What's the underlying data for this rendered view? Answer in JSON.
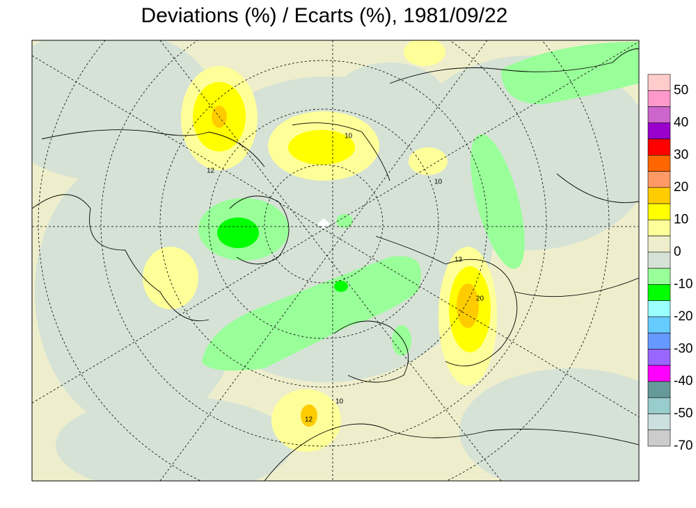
{
  "header": {
    "title": "Deviations (%) / Ecarts (%), 1981/09/22"
  },
  "colorbar": {
    "colors": [
      "#ffcccc",
      "#ff99cc",
      "#cc66cc",
      "#9900cc",
      "#ff0000",
      "#ff6600",
      "#ff9966",
      "#ffcc00",
      "#ffff00",
      "#ffff99",
      "#eeeecc",
      "#d6e2d6",
      "#99ff99",
      "#00ff00",
      "#99ffff",
      "#66ccff",
      "#6699ff",
      "#9966ff",
      "#ff00ff",
      "#669999",
      "#99cccc",
      "#cce0e0",
      "#cccccc"
    ],
    "labels": [
      50,
      40,
      30,
      20,
      10,
      0,
      -10,
      -20,
      -30,
      -40,
      -50,
      -70
    ]
  },
  "contour_labels": [
    "10",
    "12",
    "13",
    "20",
    "12",
    "10",
    "10"
  ]
}
